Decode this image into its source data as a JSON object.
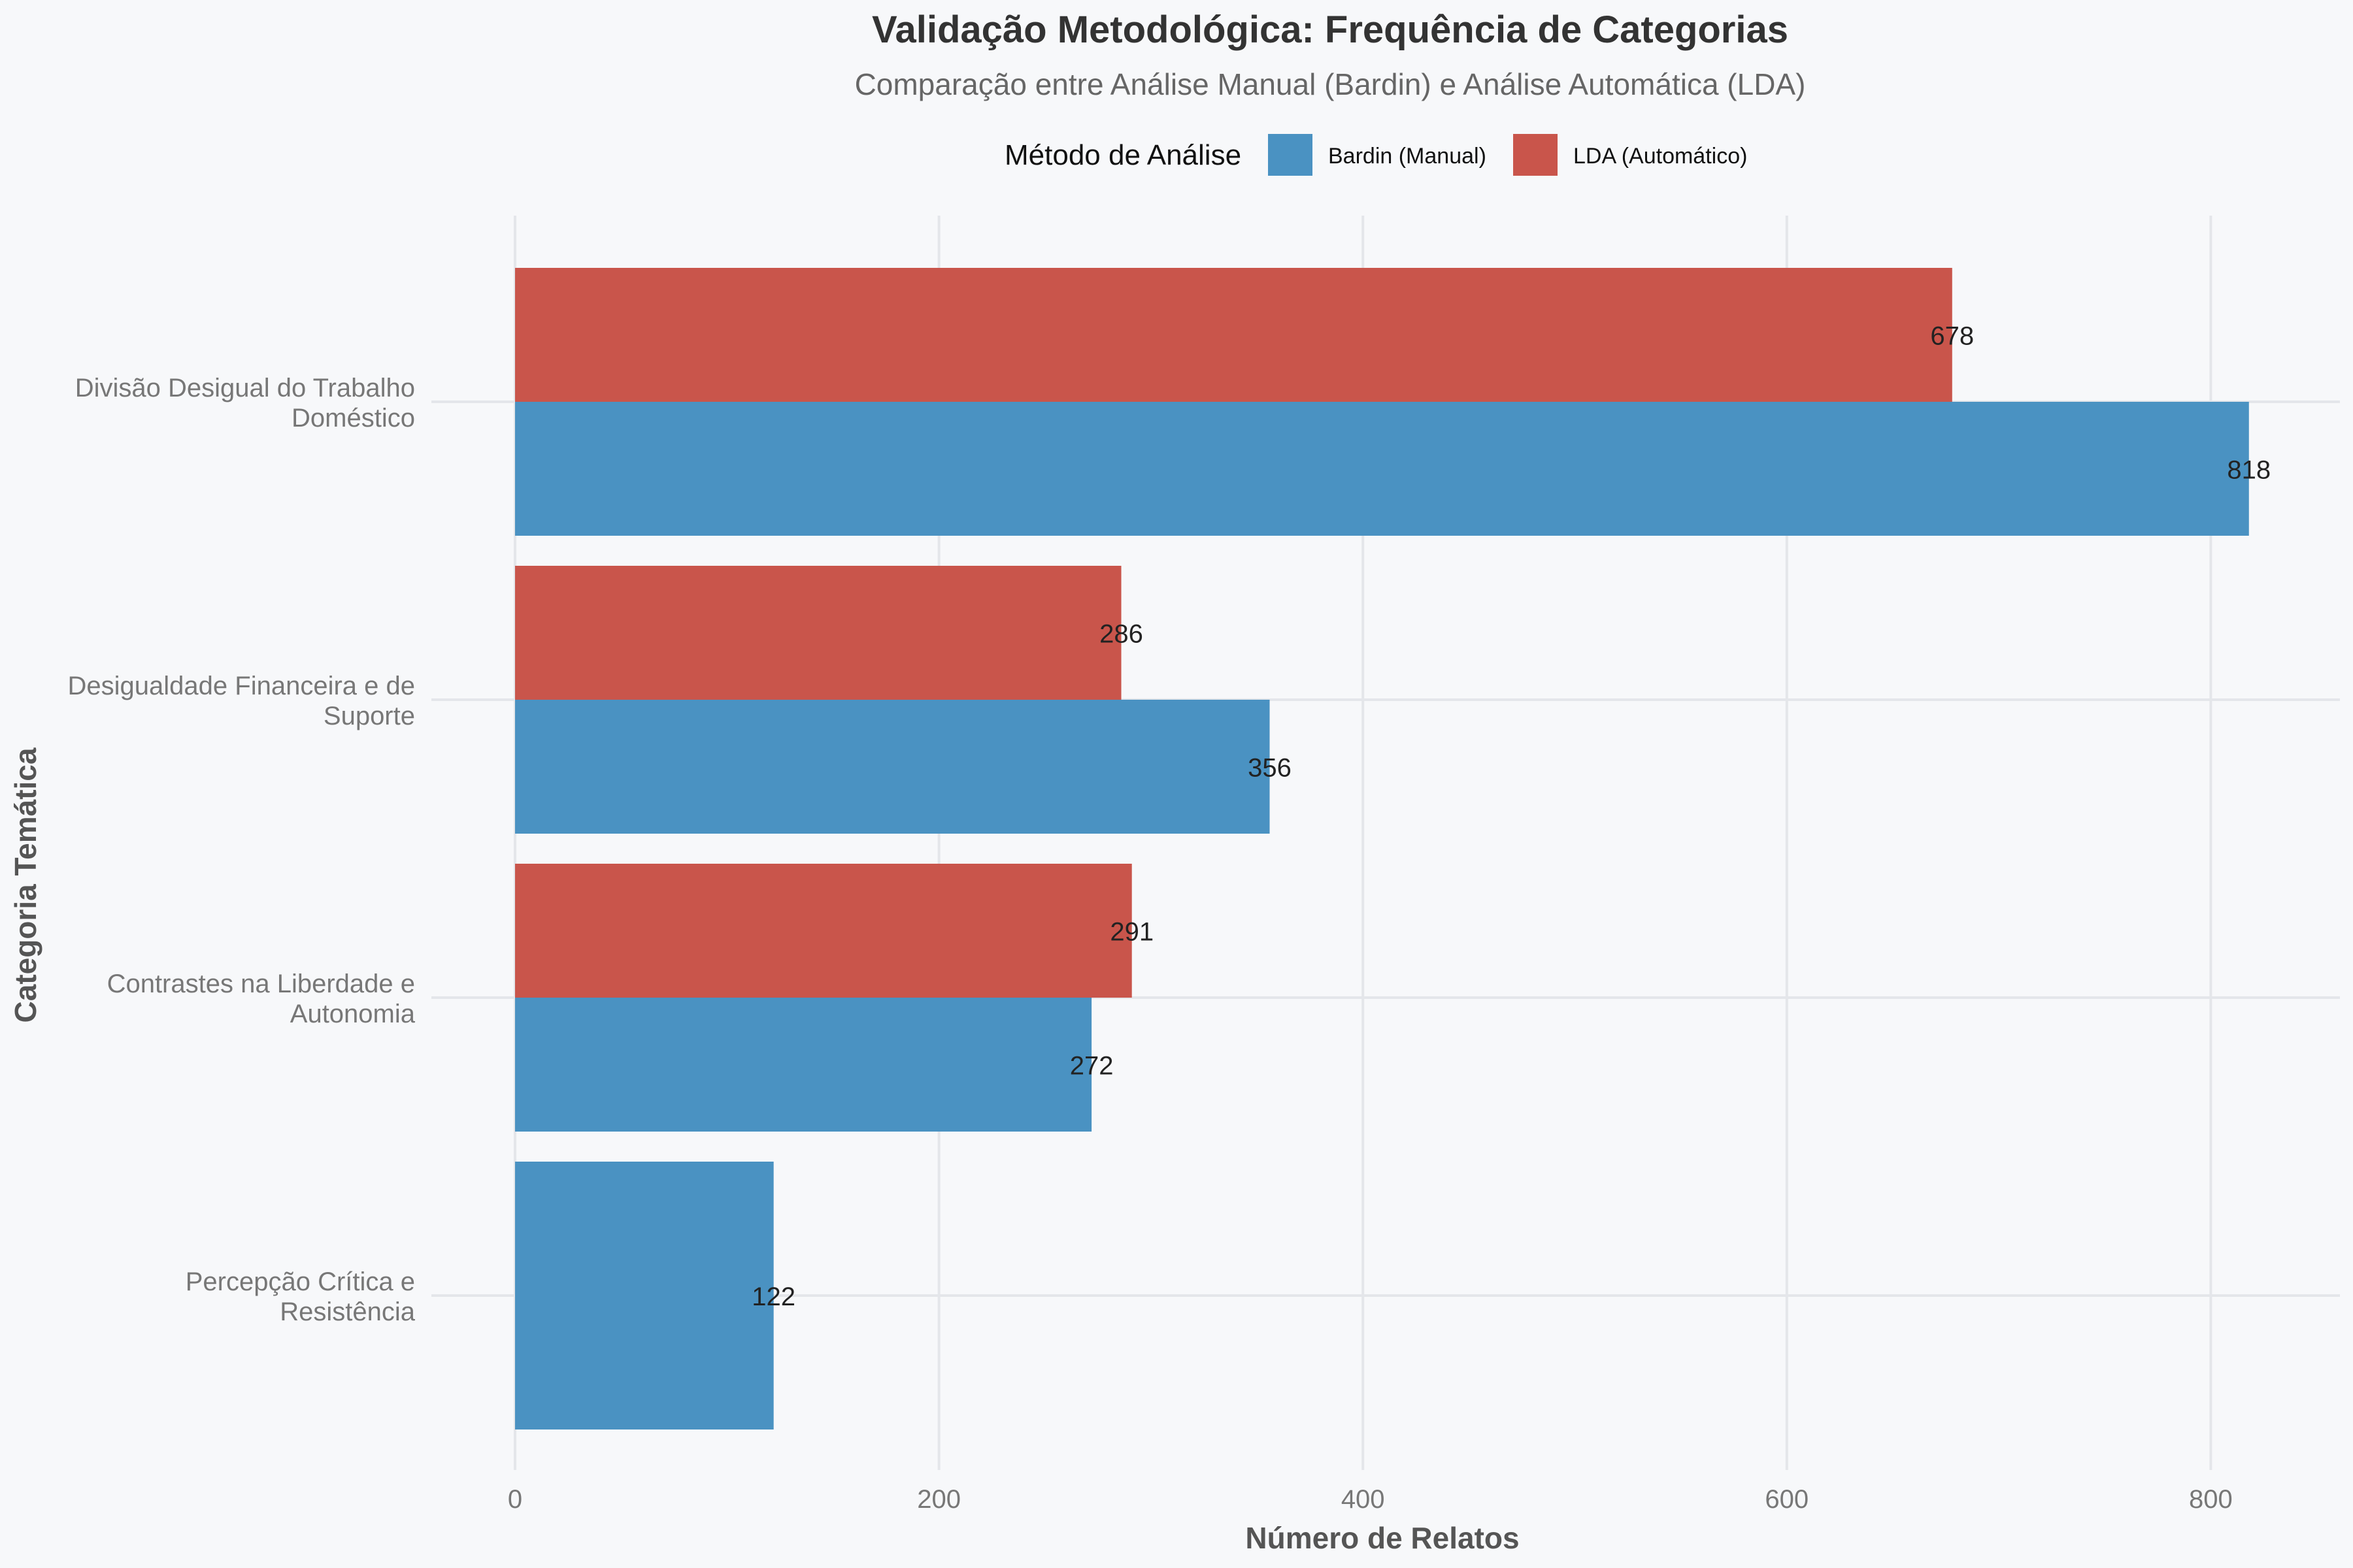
{
  "chart_data": {
    "type": "bar",
    "orientation": "horizontal",
    "title": "Validação Metodológica: Frequência de Categorias",
    "subtitle": "Comparação entre Análise Manual (Bardin) e Análise Automática (LDA)",
    "xlabel": "Número de Relatos",
    "ylabel": "Categoria Temática",
    "xlim": [
      0,
      860
    ],
    "x_ticks": [
      0,
      200,
      400,
      600,
      800
    ],
    "grid": true,
    "legend": {
      "title": "Método de Análise",
      "position": "top"
    },
    "categories": [
      [
        "Divisão Desigual do Trabalho",
        "Doméstico"
      ],
      [
        "Desigualdade Financeira e de",
        "Suporte"
      ],
      [
        "Contrastes na Liberdade e",
        "Autonomia"
      ],
      [
        "Percepção Crítica e",
        "Resistência"
      ]
    ],
    "series": [
      {
        "name": "Bardin (Manual)",
        "color": "#4a92c2",
        "values": [
          818,
          356,
          272,
          122
        ]
      },
      {
        "name": "LDA (Automático)",
        "color": "#c9554b",
        "values": [
          678,
          286,
          291,
          null
        ]
      }
    ]
  }
}
